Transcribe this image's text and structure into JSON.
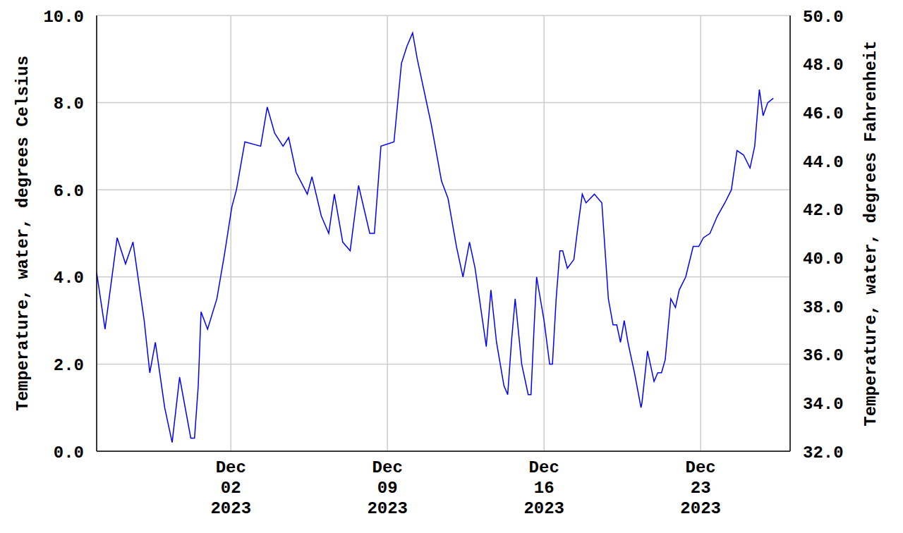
{
  "chart_data": {
    "type": "line",
    "color": "#0000ff",
    "grid": true,
    "ylabel": "Temperature, water, degrees Celsius",
    "y2label": "Temperature, water, degrees Fahrenheit",
    "xlim": [
      "2023-11-26T00:00",
      "2023-12-27T00:00"
    ],
    "xticks": [
      {
        "value": "2023-12-02T00:00",
        "label": "Dec\n02\n2023"
      },
      {
        "value": "2023-12-09T00:00",
        "label": "Dec\n09\n2023"
      },
      {
        "value": "2023-12-16T00:00",
        "label": "Dec\n16\n2023"
      },
      {
        "value": "2023-12-23T00:00",
        "label": "Dec\n23\n2023"
      }
    ],
    "ylim": [
      0,
      10
    ],
    "yticks": [
      {
        "value": 0,
        "label": "0.0"
      },
      {
        "value": 2,
        "label": "2.0"
      },
      {
        "value": 4,
        "label": "4.0"
      },
      {
        "value": 6,
        "label": "6.0"
      },
      {
        "value": 8,
        "label": "8.0"
      },
      {
        "value": 10,
        "label": "10.0"
      }
    ],
    "y2lim": [
      32,
      50
    ],
    "y2ticks": [
      {
        "value": 32,
        "label": "32.0"
      },
      {
        "value": 34,
        "label": "34.0"
      },
      {
        "value": 36,
        "label": "36.0"
      },
      {
        "value": 38,
        "label": "38.0"
      },
      {
        "value": 40,
        "label": "40.0"
      },
      {
        "value": 42,
        "label": "42.0"
      },
      {
        "value": 44,
        "label": "44.0"
      },
      {
        "value": 46,
        "label": "46.0"
      },
      {
        "value": 48,
        "label": "48.0"
      },
      {
        "value": 50,
        "label": "50.0"
      }
    ],
    "x": [
      "2023-11-26T00:00",
      "2023-11-26T09:00",
      "2023-11-26T22:00",
      "2023-11-27T07:00",
      "2023-11-27T15:00",
      "2023-11-28T03:00",
      "2023-11-28T09:00",
      "2023-11-28T15:00",
      "2023-11-29T01:00",
      "2023-11-29T09:00",
      "2023-11-29T17:00",
      "2023-11-30T05:00",
      "2023-11-30T09:00",
      "2023-11-30T13:00",
      "2023-11-30T16:00",
      "2023-11-30T23:00",
      "2023-12-01T09:00",
      "2023-12-01T17:00",
      "2023-12-02T01:00",
      "2023-12-02T06:00",
      "2023-12-02T15:00",
      "2023-12-03T08:00",
      "2023-12-03T15:00",
      "2023-12-03T23:00",
      "2023-12-04T08:00",
      "2023-12-04T14:00",
      "2023-12-04T22:00",
      "2023-12-05T10:00",
      "2023-12-05T15:00",
      "2023-12-06T01:00",
      "2023-12-06T09:00",
      "2023-12-06T15:00",
      "2023-12-07T00:00",
      "2023-12-07T08:00",
      "2023-12-07T17:00",
      "2023-12-08T05:00",
      "2023-12-08T10:00",
      "2023-12-08T17:00",
      "2023-12-09T07:00",
      "2023-12-09T15:00",
      "2023-12-09T21:00",
      "2023-12-10T03:00",
      "2023-12-10T08:00",
      "2023-12-10T23:00",
      "2023-12-11T10:00",
      "2023-12-11T17:00",
      "2023-12-12T02:00",
      "2023-12-12T09:00",
      "2023-12-12T16:00",
      "2023-12-12T22:00",
      "2023-12-13T06:00",
      "2023-12-13T10:00",
      "2023-12-13T15:00",
      "2023-12-13T21:00",
      "2023-12-14T05:00",
      "2023-12-14T09:00",
      "2023-12-14T13:00",
      "2023-12-14T17:00",
      "2023-12-15T00:00",
      "2023-12-15T07:00",
      "2023-12-15T10:00",
      "2023-12-15T13:00",
      "2023-12-15T16:00",
      "2023-12-16T00:00",
      "2023-12-16T06:00",
      "2023-12-16T09:00",
      "2023-12-16T13:00",
      "2023-12-16T17:00",
      "2023-12-16T20:00",
      "2023-12-17T01:00",
      "2023-12-17T08:00",
      "2023-12-17T12:00",
      "2023-12-17T17:00",
      "2023-12-17T21:00",
      "2023-12-18T06:00",
      "2023-12-18T14:00",
      "2023-12-18T21:00",
      "2023-12-19T02:00",
      "2023-12-19T06:00",
      "2023-12-19T10:00",
      "2023-12-19T14:00",
      "2023-12-19T18:00",
      "2023-12-20T01:00",
      "2023-12-20T08:00",
      "2023-12-20T09:00",
      "2023-12-20T15:00",
      "2023-12-20T22:00",
      "2023-12-21T02:00",
      "2023-12-21T06:00",
      "2023-12-21T10:00",
      "2023-12-21T16:00",
      "2023-12-21T21:00",
      "2023-12-22T01:00",
      "2023-12-22T08:00",
      "2023-12-22T16:00",
      "2023-12-22T22:00",
      "2023-12-23T03:00",
      "2023-12-23T10:00",
      "2023-12-23T18:00",
      "2023-12-24T02:00",
      "2023-12-24T09:00",
      "2023-12-24T15:00",
      "2023-12-24T22:00",
      "2023-12-25T05:00",
      "2023-12-25T10:00",
      "2023-12-25T15:00",
      "2023-12-25T19:00",
      "2023-12-26T00:00",
      "2023-12-26T06:00"
    ],
    "values": [
      4.1,
      2.8,
      4.9,
      4.3,
      4.8,
      3.0,
      1.8,
      2.5,
      1.0,
      0.2,
      1.7,
      0.3,
      0.3,
      1.5,
      3.2,
      2.8,
      3.5,
      4.5,
      5.6,
      6.0,
      7.1,
      7.0,
      7.9,
      7.3,
      7.0,
      7.2,
      6.4,
      5.9,
      6.3,
      5.4,
      5.0,
      5.9,
      4.8,
      4.6,
      6.1,
      5.0,
      5.0,
      7.0,
      7.1,
      8.9,
      9.3,
      9.6,
      9.0,
      7.5,
      6.2,
      5.8,
      4.7,
      4.0,
      4.8,
      4.2,
      3.0,
      2.4,
      3.7,
      2.5,
      1.5,
      1.3,
      2.5,
      3.5,
      2.0,
      1.3,
      1.3,
      2.7,
      4.0,
      3.0,
      2.0,
      2.0,
      3.5,
      4.6,
      4.6,
      4.2,
      4.4,
      5.1,
      5.9,
      5.7,
      5.9,
      5.7,
      3.5,
      2.9,
      2.9,
      2.5,
      3.0,
      2.5,
      1.8,
      1.0,
      1.1,
      2.3,
      1.6,
      1.8,
      1.8,
      2.1,
      3.5,
      3.3,
      3.7,
      4.0,
      4.7,
      4.7,
      4.9,
      5.0,
      5.4,
      5.7,
      6.0,
      6.9,
      6.8,
      6.5,
      7.0,
      8.3,
      7.7,
      8.0,
      8.1
    ]
  }
}
